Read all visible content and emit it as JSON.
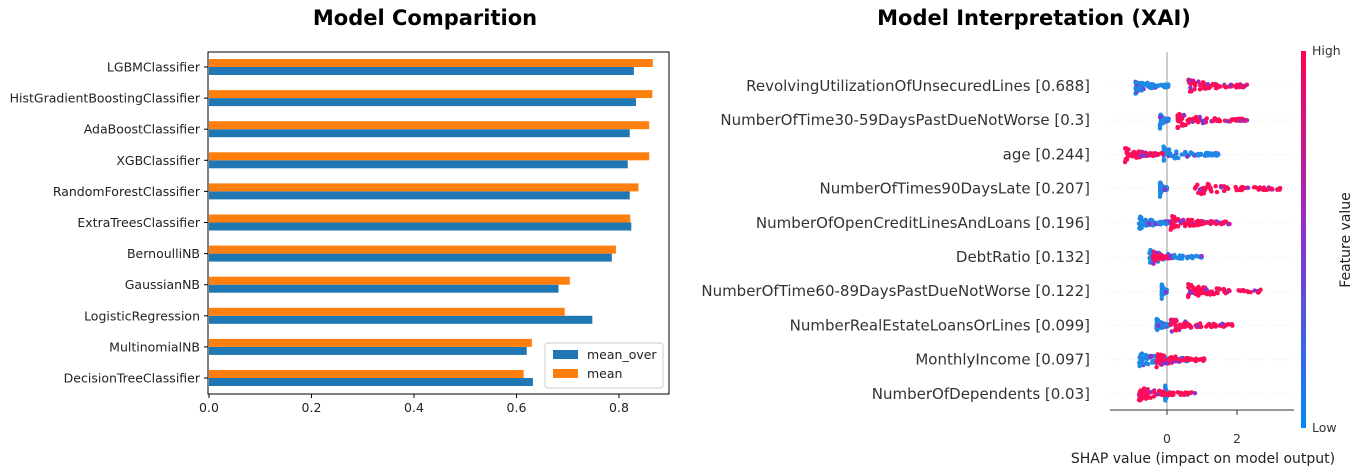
{
  "chart_data": [
    {
      "type": "bar",
      "orientation": "horizontal",
      "title": "Model Comparition",
      "categories": [
        "LGBMClassifier",
        "HistGradientBoostingClassifier",
        "AdaBoostClassifier",
        "XGBClassifier",
        "RandomForestClassifier",
        "ExtraTreesClassifier",
        "BernoulliNB",
        "GaussianNB",
        "LogisticRegression",
        "MultinomialNB",
        "DecisionTreeClassifier"
      ],
      "series": [
        {
          "name": "mean_over",
          "color": "#1f77b4",
          "values": [
            0.829,
            0.833,
            0.821,
            0.817,
            0.821,
            0.824,
            0.786,
            0.682,
            0.748,
            0.62,
            0.632
          ]
        },
        {
          "name": "mean",
          "color": "#ff7f0e",
          "values": [
            0.866,
            0.865,
            0.859,
            0.859,
            0.838,
            0.822,
            0.794,
            0.704,
            0.694,
            0.63,
            0.614
          ]
        }
      ],
      "xlim": [
        0,
        0.9
      ],
      "xticks": [
        "0.0",
        "0.2",
        "0.4",
        "0.6",
        "0.8"
      ],
      "legend_position": "lower right",
      "grid": false
    },
    {
      "type": "scatter",
      "subtype": "shap_beeswarm",
      "title": "Model Interpretation (XAI)",
      "features": [
        {
          "label": "RevolvingUtilizationOfUnsecuredLines [0.688]",
          "low_range": [
            -0.9,
            0.1
          ],
          "high_range": [
            0.6,
            2.3
          ]
        },
        {
          "label": "NumberOfTime30-59DaysPastDueNotWorse [0.3]",
          "low_range": [
            -0.2,
            0.05
          ],
          "high_range": [
            0.3,
            2.3
          ]
        },
        {
          "label": "age [0.244]",
          "low_range": [
            -0.1,
            1.5
          ],
          "high_range": [
            -1.2,
            -0.1
          ]
        },
        {
          "label": "NumberOfTimes90DaysLate [0.207]",
          "low_range": [
            -0.2,
            0.0
          ],
          "high_range": [
            0.8,
            3.3
          ]
        },
        {
          "label": "NumberOfOpenCreditLinesAndLoans [0.196]",
          "low_range": [
            -0.8,
            0.2
          ],
          "high_range": [
            0.1,
            1.9
          ]
        },
        {
          "label": "DebtRatio [0.132]",
          "low_range": [
            -0.5,
            1.0
          ],
          "high_range": [
            -0.4,
            0.1
          ]
        },
        {
          "label": "NumberOfTime60-89DaysPastDueNotWorse [0.122]",
          "low_range": [
            -0.15,
            0.0
          ],
          "high_range": [
            0.6,
            2.7
          ]
        },
        {
          "label": "NumberRealEstateLoansOrLines [0.099]",
          "low_range": [
            -0.3,
            0.1
          ],
          "high_range": [
            0.1,
            1.9
          ]
        },
        {
          "label": "MonthlyIncome [0.097]",
          "low_range": [
            -0.8,
            0.8
          ],
          "high_range": [
            -0.3,
            1.2
          ]
        },
        {
          "label": "NumberOfDependents [0.03]",
          "low_range": [
            -0.05,
            0.05
          ],
          "high_range": [
            -0.8,
            0.8
          ]
        }
      ],
      "xlabel": "SHAP value (impact on model output)",
      "xlim": [
        -1.3,
        3.5
      ],
      "xticks": [
        "0",
        "2"
      ],
      "colorbar": {
        "label": "Feature value",
        "high": "High",
        "low": "Low",
        "low_color": "#008afb",
        "high_color": "#ff0052"
      }
    }
  ]
}
